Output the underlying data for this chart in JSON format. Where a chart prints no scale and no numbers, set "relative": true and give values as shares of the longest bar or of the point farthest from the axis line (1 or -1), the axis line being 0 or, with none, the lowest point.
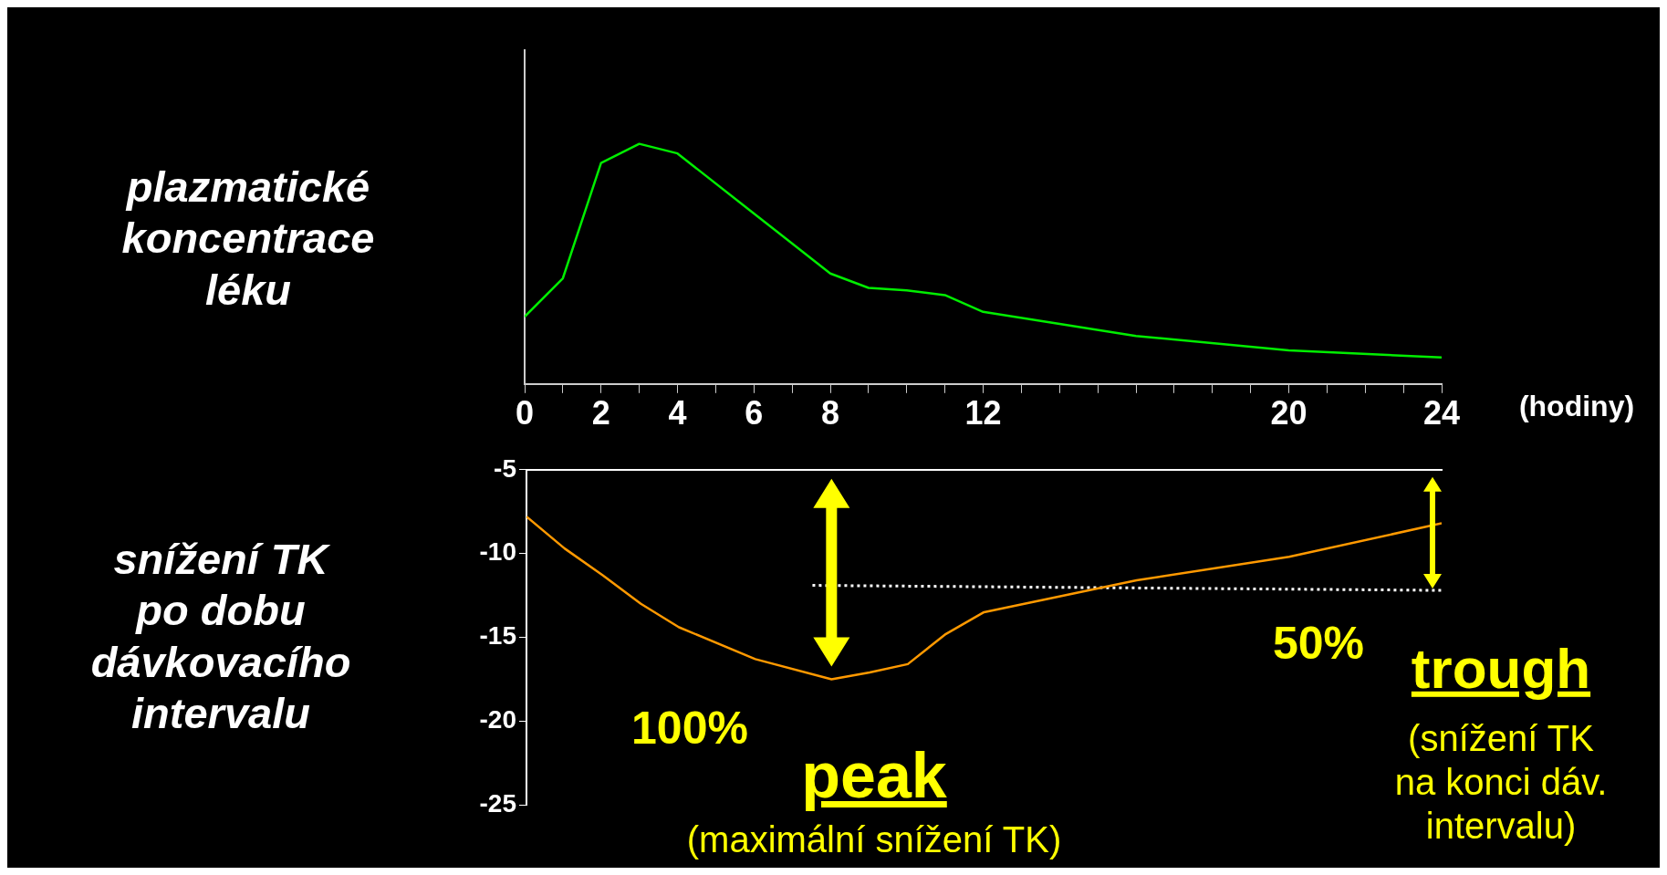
{
  "chart_data": [
    {
      "type": "line",
      "ylabel": "plazmatické\nkoncentrace\nléku",
      "xlabel": "(hodiny)",
      "relative": true,
      "marker": "none",
      "x": [
        0,
        1,
        2,
        3,
        4,
        6,
        8,
        9,
        10,
        11,
        12,
        16,
        20,
        24
      ],
      "series": [
        {
          "color": "#00ee00",
          "values": [
            0.28,
            0.44,
            0.92,
            1,
            0.96,
            0.71,
            0.46,
            0.4,
            0.39,
            0.37,
            0.3,
            0.2,
            0.14,
            0.11
          ]
        }
      ],
      "xlim": [
        0,
        24
      ],
      "xticks": [
        0,
        {
          "value": 1,
          "label": null
        },
        2,
        {
          "value": 3,
          "label": null
        },
        4,
        {
          "value": 5,
          "label": null
        },
        6,
        {
          "value": 7,
          "label": null
        },
        8,
        {
          "value": 9,
          "label": null
        },
        {
          "value": 10,
          "label": null
        },
        {
          "value": 11,
          "label": null
        },
        12,
        {
          "value": 13,
          "label": null
        },
        {
          "value": 14,
          "label": null
        },
        {
          "value": 15,
          "label": null
        },
        {
          "value": 16,
          "label": null
        },
        {
          "value": 17,
          "label": null
        },
        {
          "value": 18,
          "label": null
        },
        {
          "value": 19,
          "label": null
        },
        20,
        {
          "value": 21,
          "label": null
        },
        {
          "value": 22,
          "label": null
        },
        {
          "value": 23,
          "label": null
        },
        24
      ]
    },
    {
      "type": "line",
      "ylabel": "snížení TK\npo dobu\ndávkovacího\nintervalu",
      "marker": "none",
      "tick_labels": "y",
      "x": [
        0,
        1,
        2,
        3,
        4,
        6,
        8,
        9,
        10,
        11,
        12,
        16,
        20,
        24
      ],
      "series": [
        {
          "color": "#ff9900",
          "values": [
            -7.8,
            -9.7,
            -11.3,
            -13,
            -14.4,
            -16.3,
            -17.5,
            -17.1,
            -16.6,
            -14.8,
            -13.5,
            -11.6,
            -10.2,
            -8.2
          ]
        },
        {
          "x": [
            7.5,
            24
          ],
          "color": "#ffffff",
          "line_style": "dotted",
          "values": [
            -11.9,
            -12.2
          ]
        }
      ],
      "xlim": [
        0,
        24
      ],
      "ylim": [
        -25,
        -5
      ],
      "yticks": [
        -25,
        -20,
        -15,
        -10,
        -5
      ],
      "annotations": [
        "100%",
        "50%",
        "peak",
        "(maximální snížení TK)",
        "trough",
        "(snížení TK\nna konci dáv.\nintervalu)"
      ]
    }
  ]
}
